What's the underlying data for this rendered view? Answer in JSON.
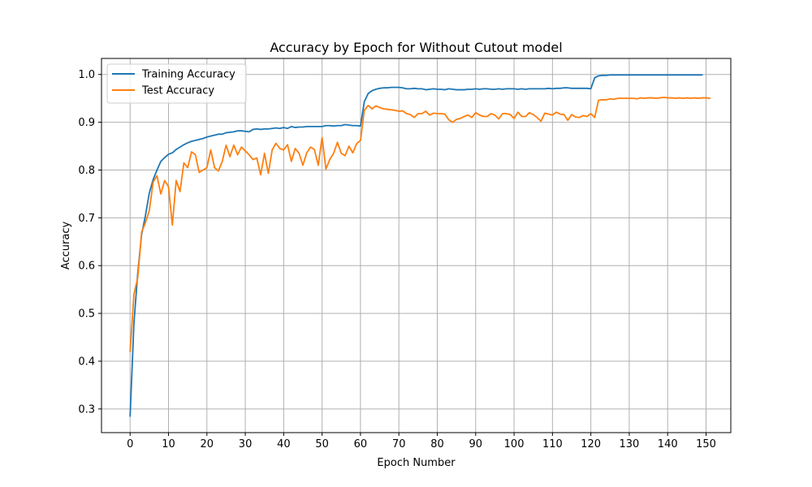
{
  "chart_data": {
    "type": "line",
    "title": "Accuracy by Epoch for Without Cutout model",
    "xlabel": "Epoch Number",
    "ylabel": "Accuracy",
    "xlim": [
      -7.45,
      156.45
    ],
    "ylim": [
      0.2505,
      1.0335
    ],
    "xticks": [
      0,
      10,
      20,
      30,
      40,
      50,
      60,
      70,
      80,
      90,
      100,
      110,
      120,
      130,
      140,
      150
    ],
    "yticks": [
      0.3,
      0.4,
      0.5,
      0.6,
      0.7,
      0.8,
      0.9,
      1.0
    ],
    "ytick_labels": [
      "0.3",
      "0.4",
      "0.5",
      "0.6",
      "0.7",
      "0.8",
      "0.9",
      "1.0"
    ],
    "grid": true,
    "legend_position": "top-left",
    "series": [
      {
        "name": "Training Accuracy",
        "color": "#1f77b4",
        "y": [
          0.285,
          0.48,
          0.585,
          0.665,
          0.705,
          0.752,
          0.78,
          0.8,
          0.818,
          0.826,
          0.833,
          0.836,
          0.843,
          0.848,
          0.853,
          0.857,
          0.86,
          0.862,
          0.864,
          0.866,
          0.869,
          0.871,
          0.873,
          0.875,
          0.875,
          0.878,
          0.879,
          0.88,
          0.882,
          0.882,
          0.881,
          0.88,
          0.885,
          0.886,
          0.885,
          0.886,
          0.886,
          0.887,
          0.888,
          0.887,
          0.889,
          0.887,
          0.891,
          0.889,
          0.89,
          0.89,
          0.891,
          0.891,
          0.891,
          0.891,
          0.891,
          0.893,
          0.893,
          0.892,
          0.893,
          0.893,
          0.895,
          0.894,
          0.893,
          0.893,
          0.892,
          0.943,
          0.96,
          0.966,
          0.969,
          0.971,
          0.972,
          0.972,
          0.973,
          0.973,
          0.973,
          0.972,
          0.97,
          0.97,
          0.971,
          0.97,
          0.97,
          0.968,
          0.969,
          0.97,
          0.969,
          0.969,
          0.968,
          0.97,
          0.969,
          0.968,
          0.968,
          0.968,
          0.969,
          0.969,
          0.97,
          0.969,
          0.97,
          0.97,
          0.969,
          0.969,
          0.97,
          0.969,
          0.97,
          0.97,
          0.97,
          0.969,
          0.97,
          0.969,
          0.97,
          0.97,
          0.97,
          0.97,
          0.97,
          0.971,
          0.97,
          0.971,
          0.971,
          0.972,
          0.972,
          0.971,
          0.971,
          0.971,
          0.971,
          0.971,
          0.97,
          0.993,
          0.997,
          0.998,
          0.998,
          0.999,
          0.999,
          0.999,
          0.999,
          0.999,
          0.999,
          0.999,
          0.999,
          0.999,
          0.999,
          0.999,
          0.999,
          0.999,
          0.999,
          0.999,
          0.999,
          0.999,
          0.999,
          0.999,
          0.999,
          0.999,
          0.999,
          0.999,
          0.999,
          0.999
        ]
      },
      {
        "name": "Test Accuracy",
        "color": "#ff7f0e",
        "y": [
          0.42,
          0.54,
          0.575,
          0.67,
          0.69,
          0.715,
          0.775,
          0.788,
          0.75,
          0.778,
          0.765,
          0.685,
          0.778,
          0.755,
          0.815,
          0.805,
          0.838,
          0.832,
          0.795,
          0.8,
          0.805,
          0.842,
          0.805,
          0.798,
          0.818,
          0.852,
          0.828,
          0.852,
          0.832,
          0.848,
          0.84,
          0.832,
          0.822,
          0.825,
          0.79,
          0.835,
          0.793,
          0.842,
          0.856,
          0.845,
          0.842,
          0.853,
          0.818,
          0.845,
          0.835,
          0.81,
          0.836,
          0.848,
          0.843,
          0.81,
          0.868,
          0.802,
          0.822,
          0.835,
          0.858,
          0.835,
          0.83,
          0.85,
          0.836,
          0.855,
          0.862,
          0.925,
          0.935,
          0.928,
          0.934,
          0.931,
          0.928,
          0.927,
          0.926,
          0.925,
          0.923,
          0.924,
          0.918,
          0.916,
          0.91,
          0.918,
          0.918,
          0.923,
          0.915,
          0.919,
          0.918,
          0.918,
          0.917,
          0.905,
          0.9,
          0.906,
          0.908,
          0.912,
          0.915,
          0.91,
          0.92,
          0.915,
          0.912,
          0.912,
          0.918,
          0.915,
          0.907,
          0.918,
          0.918,
          0.916,
          0.908,
          0.921,
          0.912,
          0.912,
          0.92,
          0.916,
          0.91,
          0.902,
          0.919,
          0.917,
          0.915,
          0.921,
          0.917,
          0.916,
          0.904,
          0.916,
          0.911,
          0.91,
          0.914,
          0.912,
          0.918,
          0.91,
          0.946,
          0.947,
          0.947,
          0.949,
          0.948,
          0.95,
          0.95,
          0.95,
          0.95,
          0.95,
          0.949,
          0.951,
          0.95,
          0.951,
          0.951,
          0.95,
          0.951,
          0.952,
          0.951,
          0.951,
          0.95,
          0.951,
          0.95,
          0.951,
          0.95,
          0.951,
          0.95,
          0.951,
          0.951,
          0.95
        ]
      }
    ]
  }
}
